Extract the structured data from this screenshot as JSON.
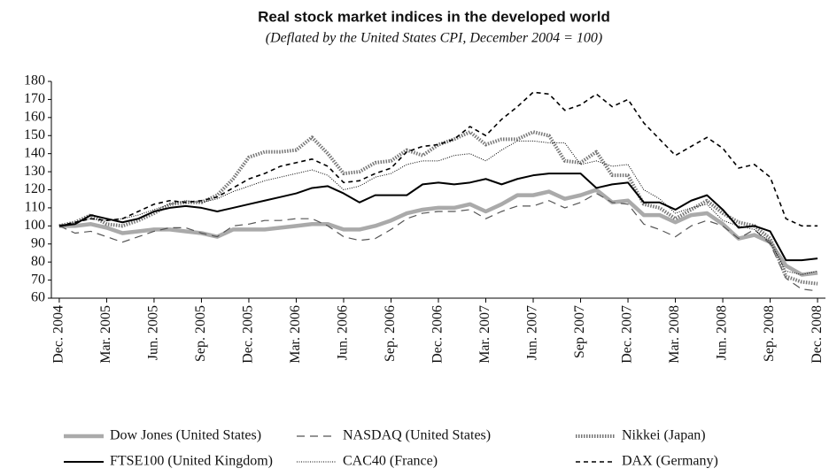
{
  "chart_data": {
    "type": "line",
    "title": "Real stock market indices in the developed world",
    "subtitle": "(Deflated by the United States CPI, December 2004 = 100)",
    "categories": [
      "Dec. 2004",
      null,
      null,
      "Mar. 2005",
      null,
      null,
      "Jun. 2005",
      null,
      null,
      "Sep. 2005",
      null,
      null,
      "Dec. 2005",
      null,
      null,
      "Mar. 2006",
      null,
      null,
      "Jun. 2006",
      null,
      null,
      "Sep. 2006",
      null,
      null,
      "Dec. 2006",
      null,
      null,
      "Mar. 2007",
      null,
      null,
      "Jun. 2007",
      null,
      null,
      "Sep 2007",
      null,
      null,
      "Dec. 2007",
      null,
      null,
      "Mar. 2008",
      null,
      null,
      "Jun. 2008",
      null,
      null,
      "Sep. 2008",
      null,
      null,
      "Dec. 2008"
    ],
    "ylim": [
      60,
      180
    ],
    "yticks": [
      60,
      70,
      80,
      90,
      100,
      110,
      120,
      130,
      140,
      150,
      160,
      170,
      180
    ],
    "series": [
      {
        "name": "Dow Jones (United States)",
        "color": "#aaaaaa",
        "style": "thick",
        "values": [
          100,
          100,
          101,
          99,
          96,
          97,
          98,
          98,
          97,
          96,
          94,
          98,
          98,
          98,
          99,
          100,
          101,
          101,
          98,
          98,
          100,
          103,
          107,
          109,
          110,
          110,
          112,
          108,
          112,
          117,
          117,
          119,
          115,
          117,
          120,
          113,
          114,
          106,
          106,
          102,
          106,
          107,
          101,
          93,
          95,
          91,
          78,
          73,
          74
        ]
      },
      {
        "name": "NASDAQ (United States)",
        "color": "#555555",
        "style": "longdash",
        "values": [
          100,
          96,
          97,
          94,
          91,
          94,
          97,
          99,
          99,
          96,
          94,
          100,
          101,
          103,
          103,
          104,
          104,
          100,
          94,
          92,
          93,
          98,
          104,
          107,
          108,
          108,
          109,
          104,
          108,
          111,
          111,
          114,
          110,
          113,
          118,
          113,
          112,
          101,
          98,
          94,
          100,
          103,
          100,
          93,
          98,
          90,
          71,
          65,
          64
        ]
      },
      {
        "name": "Nikkei (Japan)",
        "color": "#777777",
        "style": "thickdot",
        "values": [
          100,
          102,
          106,
          101,
          100,
          103,
          107,
          112,
          113,
          113,
          117,
          126,
          138,
          141,
          141,
          142,
          149,
          140,
          129,
          130,
          135,
          136,
          142,
          139,
          145,
          148,
          152,
          145,
          148,
          148,
          152,
          150,
          136,
          135,
          141,
          128,
          128,
          112,
          110,
          104,
          109,
          114,
          107,
          102,
          100,
          93,
          72,
          69,
          68
        ]
      },
      {
        "name": "FTSE100 (United Kingdom)",
        "color": "#000000",
        "style": "solid",
        "values": [
          100,
          101,
          106,
          104,
          102,
          104,
          108,
          110,
          111,
          110,
          108,
          110,
          112,
          114,
          116,
          118,
          121,
          122,
          118,
          113,
          117,
          117,
          117,
          123,
          124,
          123,
          124,
          126,
          123,
          126,
          128,
          129,
          129,
          129,
          121,
          123,
          124,
          113,
          113,
          109,
          114,
          117,
          109,
          99,
          100,
          97,
          81,
          81,
          82
        ]
      },
      {
        "name": "CAC40 (France)",
        "color": "#000000",
        "style": "thindot",
        "values": [
          100,
          102,
          104,
          103,
          104,
          106,
          109,
          112,
          114,
          113,
          115,
          119,
          122,
          125,
          127,
          129,
          131,
          128,
          120,
          122,
          127,
          129,
          134,
          136,
          136,
          139,
          140,
          136,
          142,
          147,
          147,
          146,
          146,
          134,
          136,
          133,
          134,
          120,
          115,
          107,
          110,
          112,
          103,
          100,
          98,
          91,
          75,
          73,
          75
        ]
      },
      {
        "name": "DAX (Germany)",
        "color": "#000000",
        "style": "dash",
        "values": [
          100,
          102,
          104,
          103,
          104,
          108,
          112,
          114,
          113,
          114,
          116,
          121,
          126,
          129,
          133,
          135,
          137,
          133,
          124,
          125,
          129,
          132,
          141,
          144,
          145,
          148,
          155,
          150,
          159,
          166,
          174,
          173,
          164,
          167,
          173,
          166,
          170,
          157,
          148,
          139,
          144,
          149,
          143,
          132,
          134,
          127,
          104,
          100,
          100
        ]
      }
    ]
  }
}
